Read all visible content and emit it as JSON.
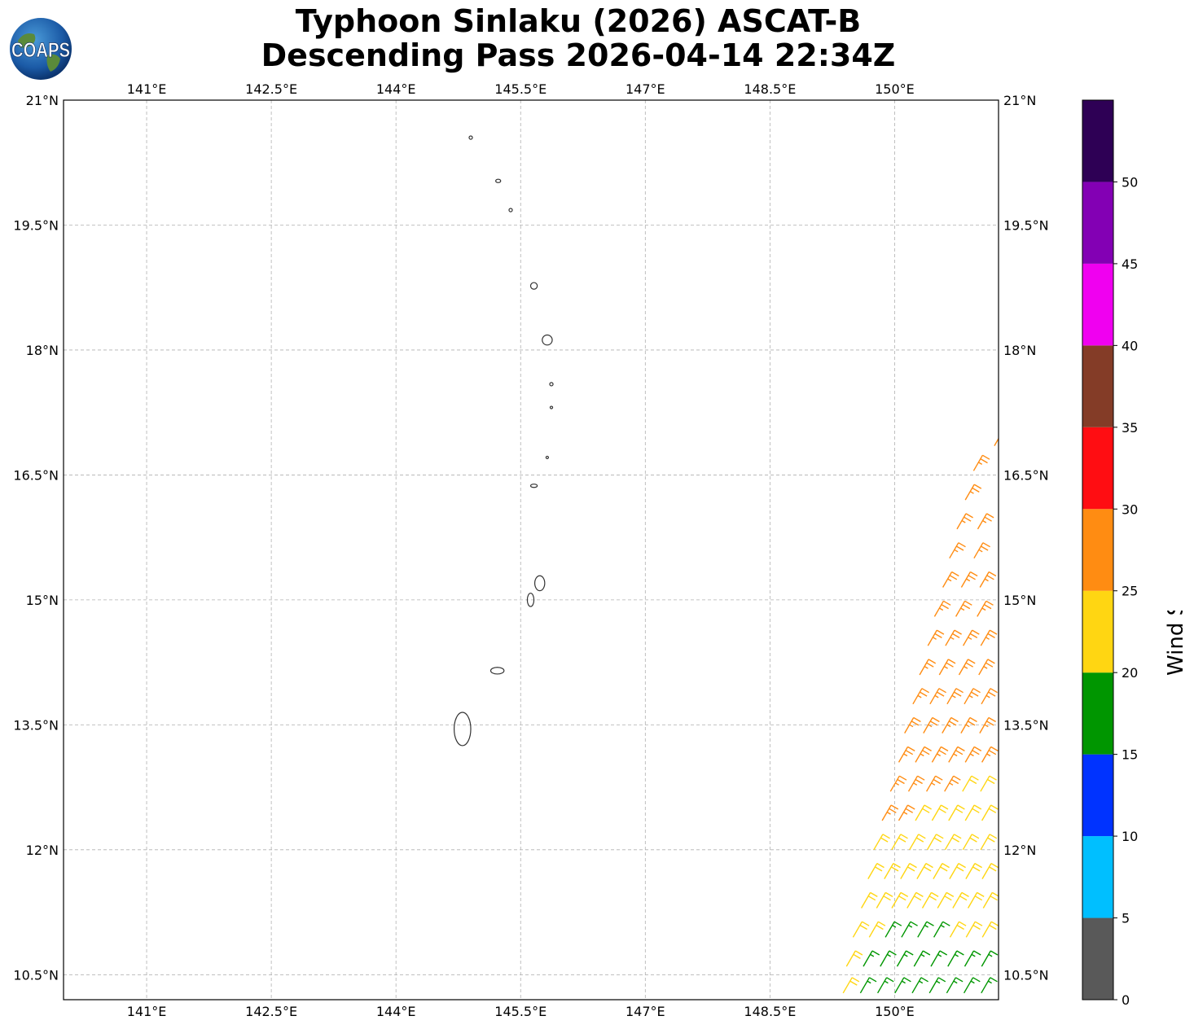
{
  "title": {
    "line1": "Typhoon Sinlaku (2026) ASCAT-B",
    "line2": "Descending Pass 2026-04-14 22:34Z"
  },
  "logo": {
    "text": "COAPS",
    "icon": "globe-logo-icon"
  },
  "map": {
    "lon_range": [
      140.0,
      151.25
    ],
    "lat_range": [
      10.2,
      21.0
    ],
    "lon_ticks": [
      {
        "value": 141.0,
        "label": "141°E"
      },
      {
        "value": 142.5,
        "label": "142.5°E"
      },
      {
        "value": 144.0,
        "label": "144°E"
      },
      {
        "value": 145.5,
        "label": "145.5°E"
      },
      {
        "value": 147.0,
        "label": "147°E"
      },
      {
        "value": 148.5,
        "label": "148.5°E"
      },
      {
        "value": 150.0,
        "label": "150°E"
      }
    ],
    "lat_ticks": [
      {
        "value": 21.0,
        "label": "21°N"
      },
      {
        "value": 19.5,
        "label": "19.5°N"
      },
      {
        "value": 18.0,
        "label": "18°N"
      },
      {
        "value": 16.5,
        "label": "16.5°N"
      },
      {
        "value": 15.0,
        "label": "15°N"
      },
      {
        "value": 13.5,
        "label": "13.5°N"
      },
      {
        "value": 12.0,
        "label": "12°N"
      },
      {
        "value": 10.5,
        "label": "10.5°N"
      }
    ],
    "grid": true,
    "islands": [
      {
        "lon": 144.9,
        "lat": 20.55,
        "rx": 0.02,
        "ry": 0.02
      },
      {
        "lon": 145.23,
        "lat": 20.03,
        "rx": 0.03,
        "ry": 0.02
      },
      {
        "lon": 145.38,
        "lat": 19.68,
        "rx": 0.02,
        "ry": 0.02
      },
      {
        "lon": 145.66,
        "lat": 18.77,
        "rx": 0.04,
        "ry": 0.04
      },
      {
        "lon": 145.82,
        "lat": 18.12,
        "rx": 0.06,
        "ry": 0.06
      },
      {
        "lon": 145.87,
        "lat": 17.59,
        "rx": 0.02,
        "ry": 0.02
      },
      {
        "lon": 145.87,
        "lat": 17.31,
        "rx": 0.015,
        "ry": 0.01
      },
      {
        "lon": 145.82,
        "lat": 16.71,
        "rx": 0.015,
        "ry": 0.01
      },
      {
        "lon": 145.66,
        "lat": 16.37,
        "rx": 0.04,
        "ry": 0.02
      },
      {
        "lon": 145.73,
        "lat": 15.2,
        "rx": 0.06,
        "ry": 0.09
      },
      {
        "lon": 145.62,
        "lat": 15.0,
        "rx": 0.04,
        "ry": 0.08
      },
      {
        "lon": 145.22,
        "lat": 14.15,
        "rx": 0.08,
        "ry": 0.04
      },
      {
        "lon": 144.8,
        "lat": 13.45,
        "rx": 0.1,
        "ry": 0.2
      }
    ],
    "wind_barbs": {
      "units": "knots",
      "rows": [
        {
          "lat": 10.28,
          "lon_start": 149.38,
          "lon_end": 151.25,
          "speeds": [
            22,
            18,
            17,
            16,
            16,
            17,
            17,
            18,
            18,
            19
          ]
        },
        {
          "lat": 10.6,
          "lon_start": 149.42,
          "lon_end": 151.25,
          "speeds": [
            22,
            19,
            18,
            17,
            17,
            18,
            18,
            19,
            19,
            19
          ]
        },
        {
          "lat": 10.95,
          "lon_start": 149.5,
          "lon_end": 151.25,
          "speeds": [
            23,
            22,
            19,
            18,
            18,
            19,
            20,
            21,
            21,
            22
          ]
        },
        {
          "lat": 11.3,
          "lon_start": 149.6,
          "lon_end": 151.25,
          "speeds": [
            23,
            23,
            22,
            22,
            22,
            22,
            23,
            23,
            23,
            23
          ]
        },
        {
          "lat": 11.65,
          "lon_start": 149.68,
          "lon_end": 151.25,
          "speeds": [
            23,
            23,
            23,
            23,
            23,
            23,
            23,
            24,
            24
          ]
        },
        {
          "lat": 12.0,
          "lon_start": 149.75,
          "lon_end": 151.25,
          "speeds": [
            24,
            24,
            23,
            23,
            23,
            24,
            24,
            24
          ]
        },
        {
          "lat": 12.35,
          "lon_start": 149.85,
          "lon_end": 151.25,
          "speeds": [
            26,
            25,
            24,
            24,
            24,
            24,
            24,
            24
          ]
        },
        {
          "lat": 12.7,
          "lon_start": 149.95,
          "lon_end": 151.25,
          "speeds": [
            26,
            26,
            25,
            25,
            24,
            24,
            24
          ]
        },
        {
          "lat": 13.05,
          "lon_start": 150.05,
          "lon_end": 151.25,
          "speeds": [
            27,
            26,
            26,
            26,
            25,
            25,
            24
          ]
        },
        {
          "lat": 13.4,
          "lon_start": 150.12,
          "lon_end": 151.25,
          "speeds": [
            27,
            27,
            27,
            26,
            26,
            26
          ]
        },
        {
          "lat": 13.75,
          "lon_start": 150.22,
          "lon_end": 151.25,
          "speeds": [
            27,
            27,
            27,
            27,
            26,
            26
          ]
        },
        {
          "lat": 14.1,
          "lon_start": 150.3,
          "lon_end": 151.25,
          "speeds": [
            27,
            27,
            27,
            27,
            27
          ]
        },
        {
          "lat": 14.45,
          "lon_start": 150.4,
          "lon_end": 151.25,
          "speeds": [
            27,
            27,
            27,
            27,
            27
          ]
        },
        {
          "lat": 14.8,
          "lon_start": 150.48,
          "lon_end": 151.25,
          "speeds": [
            27,
            27,
            27,
            27
          ]
        },
        {
          "lat": 15.15,
          "lon_start": 150.58,
          "lon_end": 151.25,
          "speeds": [
            27,
            27,
            27,
            27
          ]
        },
        {
          "lat": 15.5,
          "lon_start": 150.66,
          "lon_end": 151.25,
          "speeds": [
            27,
            27,
            27
          ]
        },
        {
          "lat": 15.85,
          "lon_start": 150.75,
          "lon_end": 151.25,
          "speeds": [
            27,
            27,
            27
          ]
        },
        {
          "lat": 16.2,
          "lon_start": 150.85,
          "lon_end": 151.25,
          "speeds": [
            27,
            27
          ]
        },
        {
          "lat": 16.55,
          "lon_start": 150.95,
          "lon_end": 151.25,
          "speeds": [
            27,
            27
          ]
        },
        {
          "lat": 16.85,
          "lon_start": 151.2,
          "lon_end": 151.25,
          "speeds": [
            27
          ]
        }
      ]
    }
  },
  "colorbar": {
    "label": "Wind Speed (knots)",
    "bins": [
      {
        "min": 0,
        "max": 5,
        "color": "#595959"
      },
      {
        "min": 5,
        "max": 10,
        "color": "#00bfff"
      },
      {
        "min": 10,
        "max": 15,
        "color": "#0033ff"
      },
      {
        "min": 15,
        "max": 20,
        "color": "#009600"
      },
      {
        "min": 20,
        "max": 25,
        "color": "#ffd612"
      },
      {
        "min": 25,
        "max": 30,
        "color": "#ff8c12"
      },
      {
        "min": 30,
        "max": 35,
        "color": "#ff0d12"
      },
      {
        "min": 35,
        "max": 40,
        "color": "#843c27"
      },
      {
        "min": 40,
        "max": 45,
        "color": "#f000f0"
      },
      {
        "min": 45,
        "max": 50,
        "color": "#8300b4"
      },
      {
        "min": 50,
        "max": 55,
        "color": "#2e0055"
      }
    ],
    "tick_labels": [
      "0",
      "5",
      "10",
      "15",
      "20",
      "25",
      "30",
      "35",
      "40",
      "45",
      "50"
    ]
  }
}
